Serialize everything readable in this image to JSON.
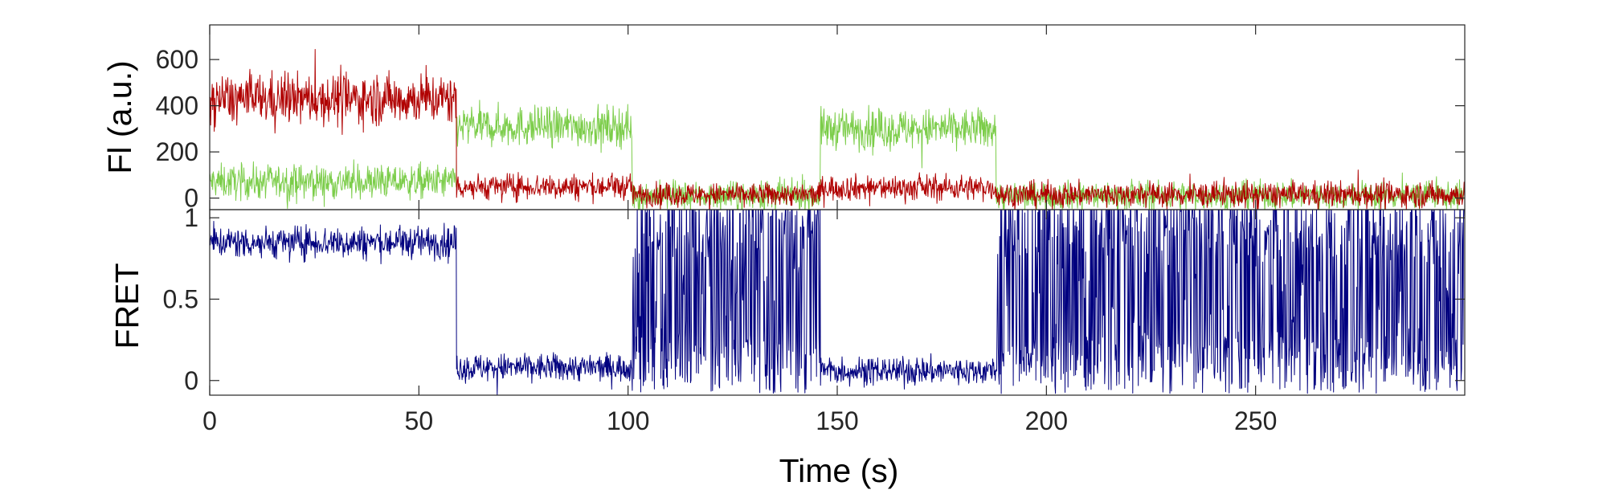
{
  "chart_data": [
    {
      "type": "line",
      "panel": "top",
      "ylabel": "Fl (a.u.)",
      "xlim": [
        0,
        300
      ],
      "ylim": [
        -50,
        750
      ],
      "yticks": [
        0,
        200,
        400,
        600
      ],
      "ytick_labels": [
        "0",
        "200",
        "400",
        "600"
      ],
      "grid": false,
      "series": [
        {
          "color": "#7ccd4a",
          "segments": [
            {
              "x": [
                0,
                59
              ],
              "mean": 70,
              "noise": 60
            },
            {
              "x": [
                59,
                101
              ],
              "mean": 310,
              "noise": 70
            },
            {
              "x": [
                101,
                146
              ],
              "mean": 10,
              "noise": 50
            },
            {
              "x": [
                146,
                188
              ],
              "mean": 300,
              "noise": 70
            },
            {
              "x": [
                188,
                300
              ],
              "mean": 10,
              "noise": 50
            }
          ]
        },
        {
          "color": "#b00000",
          "segments": [
            {
              "x": [
                0,
                59
              ],
              "mean": 430,
              "noise": 90
            },
            {
              "x": [
                59,
                101
              ],
              "mean": 50,
              "noise": 45
            },
            {
              "x": [
                101,
                146
              ],
              "mean": 15,
              "noise": 40
            },
            {
              "x": [
                146,
                188
              ],
              "mean": 45,
              "noise": 45
            },
            {
              "x": [
                188,
                300
              ],
              "mean": 15,
              "noise": 45
            }
          ]
        }
      ]
    },
    {
      "type": "line",
      "panel": "bottom",
      "xlabel": "Time (s)",
      "ylabel": "FRET",
      "xlim": [
        0,
        300
      ],
      "ylim": [
        -0.09,
        1.05
      ],
      "xticks": [
        0,
        50,
        100,
        150,
        200,
        250
      ],
      "xtick_labels": [
        "0",
        "50",
        "100",
        "150",
        "200",
        "250"
      ],
      "yticks": [
        0,
        0.5,
        1
      ],
      "ytick_labels": [
        "0",
        "0.5",
        "1"
      ],
      "grid": false,
      "series": [
        {
          "color": "#00007f",
          "segments": [
            {
              "x": [
                0,
                59
              ],
              "mean": 0.85,
              "noise": 0.08
            },
            {
              "x": [
                59,
                101
              ],
              "mean": 0.08,
              "noise": 0.07
            },
            {
              "x": [
                101,
                146
              ],
              "mean": 0.5,
              "noise": 0.55,
              "mode": "flicker"
            },
            {
              "x": [
                146,
                188
              ],
              "mean": 0.06,
              "noise": 0.07
            },
            {
              "x": [
                188,
                300
              ],
              "mean": 0.5,
              "noise": 0.55,
              "mode": "flicker"
            }
          ]
        }
      ]
    }
  ]
}
